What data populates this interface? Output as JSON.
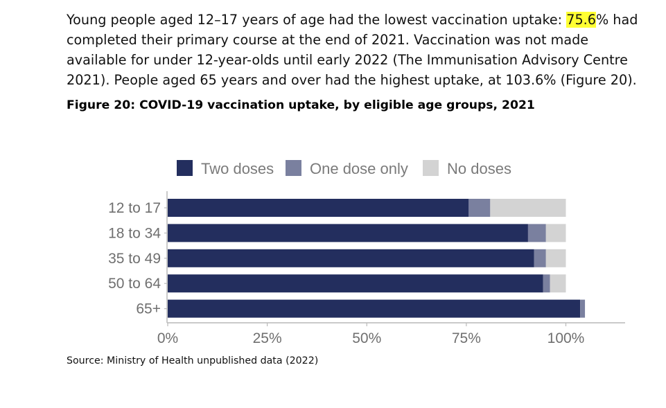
{
  "paragraph": {
    "before": "Young people aged 12–17 years of age had the lowest vaccination uptake: ",
    "highlight": "75.6",
    "after": "% had completed their primary course at the end of 2021. Vaccination was not made available for under 12-year-olds until early 2022 (The Immunisation Advisory Centre 2021). People aged 65 years and over had the highest uptake, at 103.6% (Figure 20)."
  },
  "figure_title": "Figure 20: COVID-19 vaccination uptake, by eligible age groups, 2021",
  "source": "Source: Ministry of Health unpublished data (2022)",
  "colors": {
    "two_doses": "#232e5e",
    "one_dose": "#7a809f",
    "no_doses": "#d3d3d3",
    "highlight": "#ffff33"
  },
  "chart_data": {
    "type": "bar",
    "orientation": "horizontal",
    "stacked": true,
    "title": "",
    "xlabel": "",
    "ylabel": "",
    "categories": [
      "12 to 17",
      "18 to 34",
      "35 to 49",
      "50 to 64",
      "65+"
    ],
    "series": [
      {
        "name": "Two doses",
        "values": [
          75.6,
          90.5,
          92,
          94.3,
          103.6
        ]
      },
      {
        "name": "One dose only",
        "values": [
          5.4,
          4.5,
          3,
          1.7,
          1.2
        ]
      },
      {
        "name": "No doses",
        "values": [
          19,
          5,
          5,
          4,
          0
        ]
      }
    ],
    "xlim": [
      0,
      115
    ],
    "xticks": [
      0,
      25,
      50,
      75,
      100
    ],
    "xtick_labels": [
      "0%",
      "25%",
      "50%",
      "75%",
      "100%"
    ],
    "legend_position": "top",
    "grid": false
  }
}
